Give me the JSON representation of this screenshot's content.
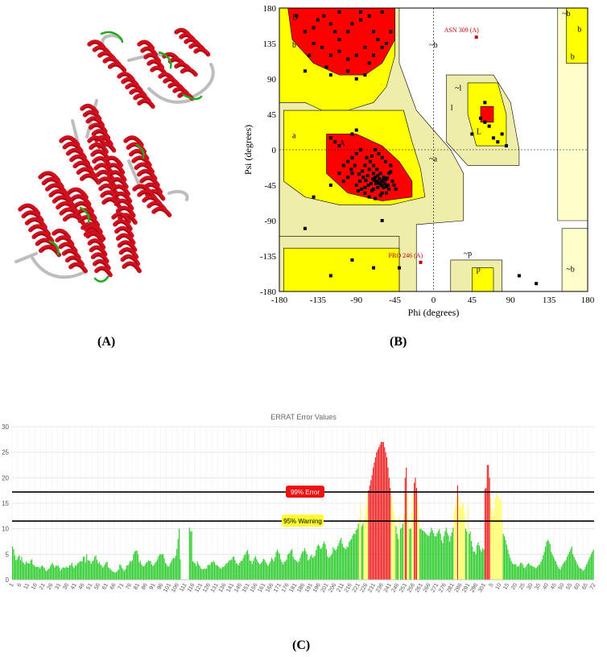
{
  "captions": {
    "a": "(A)",
    "b": "(B)",
    "c": "(C)"
  },
  "colors": {
    "helix": "#d0101e",
    "coil": "#bdbdbd",
    "turn": "#1faa1f",
    "most_favoured": "#ff0000",
    "additional": "#ffff00",
    "generous": "#eeeeaa",
    "disallowed": "#ffffff",
    "bar_ok": "#2ecc2e",
    "bar_warn": "#ffff66",
    "bar_err": "#ee2222"
  },
  "chart_data": [
    {
      "type": "scatter",
      "panel": "B",
      "xlabel": "Phi (degrees)",
      "ylabel": "Psi (degrees)",
      "xlim": [
        -180,
        180
      ],
      "ylim": [
        -180,
        180
      ],
      "x_ticks": [
        "-180",
        "-135",
        "-90",
        "-45",
        "0",
        "45",
        "90",
        "135",
        "180"
      ],
      "y_ticks": [
        "180",
        "135",
        "90",
        "45",
        "0",
        "-45",
        "-90",
        "-135",
        "-180"
      ],
      "region_labels": [
        "B",
        "b",
        "a",
        "A",
        "~a",
        "~b",
        "b",
        "~l",
        "l",
        "L",
        "~b",
        "b",
        "~p",
        "p",
        "~b"
      ],
      "annotations": [
        {
          "text": "ASN 309 (A)",
          "x": 50,
          "y": 143
        },
        {
          "text": "PRO 246 (A)",
          "x": -15,
          "y": -143
        }
      ],
      "points": [
        [
          -160,
          170
        ],
        [
          -150,
          150
        ],
        [
          -140,
          155
        ],
        [
          -135,
          165
        ],
        [
          -128,
          170
        ],
        [
          -120,
          160
        ],
        [
          -115,
          150
        ],
        [
          -110,
          140
        ],
        [
          -100,
          150
        ],
        [
          -95,
          160
        ],
        [
          -85,
          165
        ],
        [
          -75,
          170
        ],
        [
          -70,
          150
        ],
        [
          -65,
          140
        ],
        [
          -60,
          130
        ],
        [
          -80,
          130
        ],
        [
          -90,
          120
        ],
        [
          -100,
          115
        ],
        [
          -110,
          125
        ],
        [
          -120,
          120
        ],
        [
          -130,
          130
        ],
        [
          -140,
          135
        ],
        [
          -150,
          100
        ],
        [
          -120,
          95
        ],
        [
          -100,
          100
        ],
        [
          -90,
          90
        ],
        [
          -75,
          110
        ],
        [
          -70,
          120
        ],
        [
          -55,
          135
        ],
        [
          -50,
          150
        ],
        [
          -60,
          175
        ],
        [
          -85,
          175
        ],
        [
          -110,
          175
        ],
        [
          -145,
          120
        ],
        [
          -125,
          105
        ],
        [
          -80,
          95
        ],
        [
          -140,
          -60
        ],
        [
          -120,
          -45
        ],
        [
          -110,
          -30
        ],
        [
          -105,
          -20
        ],
        [
          -100,
          -15
        ],
        [
          -95,
          -10
        ],
        [
          -90,
          -5
        ],
        [
          -85,
          0
        ],
        [
          -80,
          -20
        ],
        [
          -75,
          -25
        ],
        [
          -70,
          -30
        ],
        [
          -68,
          -35
        ],
        [
          -66,
          -40
        ],
        [
          -64,
          -42
        ],
        [
          -62,
          -44
        ],
        [
          -60,
          -46
        ],
        [
          -58,
          -48
        ],
        [
          -56,
          -38
        ],
        [
          -54,
          -36
        ],
        [
          -52,
          -30
        ],
        [
          -50,
          -28
        ],
        [
          -48,
          -40
        ],
        [
          -46,
          -45
        ],
        [
          -44,
          -50
        ],
        [
          -65,
          -48
        ],
        [
          -70,
          -50
        ],
        [
          -72,
          -52
        ],
        [
          -60,
          -55
        ],
        [
          -58,
          -35
        ],
        [
          -62,
          -30
        ],
        [
          -66,
          -25
        ],
        [
          -70,
          -20
        ],
        [
          -74,
          -15
        ],
        [
          -78,
          -10
        ],
        [
          -82,
          -35
        ],
        [
          -86,
          -40
        ],
        [
          -90,
          -45
        ],
        [
          -95,
          -30
        ],
        [
          -100,
          -35
        ],
        [
          -105,
          -40
        ],
        [
          -110,
          5
        ],
        [
          -115,
          10
        ],
        [
          -120,
          15
        ],
        [
          -95,
          20
        ],
        [
          -90,
          25
        ],
        [
          -80,
          -55
        ],
        [
          -75,
          -60
        ],
        [
          -68,
          -62
        ],
        [
          -62,
          -58
        ],
        [
          -55,
          -55
        ],
        [
          -52,
          -50
        ],
        [
          -50,
          -20
        ],
        [
          -56,
          -15
        ],
        [
          -60,
          -10
        ],
        [
          -64,
          -5
        ],
        [
          -68,
          0
        ],
        [
          -72,
          -8
        ],
        [
          -76,
          -45
        ],
        [
          -80,
          -48
        ],
        [
          -84,
          -50
        ],
        [
          -88,
          -52
        ],
        [
          -92,
          -20
        ],
        [
          -96,
          -25
        ],
        [
          -63,
          -37
        ],
        [
          -61,
          -41
        ],
        [
          -67,
          -43
        ],
        [
          -69,
          -39
        ],
        [
          -57,
          -43
        ],
        [
          -59,
          -39
        ],
        [
          -53,
          -45
        ],
        [
          -55,
          -47
        ],
        [
          -65,
          -33
        ],
        [
          -71,
          -37
        ],
        [
          -73,
          -43
        ],
        [
          -77,
          -33
        ],
        [
          -79,
          -39
        ],
        [
          -83,
          -27
        ],
        [
          -87,
          -31
        ],
        [
          -150,
          -100
        ],
        [
          -60,
          -90
        ],
        [
          55,
          40
        ],
        [
          60,
          35
        ],
        [
          65,
          30
        ],
        [
          70,
          15
        ],
        [
          75,
          10
        ],
        [
          80,
          20
        ],
        [
          60,
          60
        ],
        [
          85,
          5
        ],
        [
          45,
          20
        ],
        [
          -95,
          -140
        ],
        [
          -70,
          -150
        ],
        [
          -40,
          -150
        ],
        [
          -120,
          -160
        ],
        [
          100,
          -160
        ],
        [
          120,
          -170
        ]
      ]
    },
    {
      "type": "bar",
      "panel": "C",
      "title": "ERRAT Error Values",
      "ylim": [
        0,
        30
      ],
      "y_ticks": [
        "0",
        "5",
        "10",
        "15",
        "20",
        "25",
        "30"
      ],
      "thresholds": [
        {
          "label": "99% Error",
          "value": 17.2
        },
        {
          "label": "95% Warning",
          "value": 11.5
        }
      ],
      "x_ticks": [
        "1",
        "6",
        "11",
        "16",
        "21",
        "26",
        "31",
        "36",
        "41",
        "46",
        "51",
        "56",
        "61",
        "66",
        "71",
        "76",
        "81",
        "86",
        "91",
        "96",
        "101",
        "106",
        "111",
        "116",
        "121",
        "126",
        "131",
        "136",
        "141",
        "146",
        "151",
        "156",
        "161",
        "166",
        "171",
        "176",
        "181",
        "186",
        "191",
        "196",
        "201",
        "206",
        "211",
        "216",
        "221",
        "226",
        "231",
        "236",
        "241",
        "246",
        "251",
        "256",
        "261",
        "266",
        "271",
        "276",
        "281",
        "286",
        "291",
        "296",
        "301",
        "5",
        "10",
        "15",
        "20",
        "25",
        "30",
        "35",
        "40",
        "45",
        "50",
        "55",
        "60",
        "65",
        "72"
      ],
      "values": [
        6.5,
        6.0,
        4.8,
        3.8,
        4.0,
        4.5,
        4.8,
        3.8,
        4.5,
        3.5,
        3.2,
        3.0,
        3.6,
        3.3,
        3.2,
        3.2,
        3.8,
        4.0,
        3.0,
        2.8,
        2.6,
        2.5,
        2.5,
        2.5,
        2.2,
        2.6,
        2.8,
        2.5,
        2.3,
        1.8,
        1.7,
        2.0,
        2.2,
        2.6,
        3.0,
        3.3,
        2.8,
        2.4,
        2.8,
        2.7,
        2.8,
        2.4,
        1.8,
        2.1,
        2.4,
        2.4,
        2.3,
        2.6,
        2.4,
        2.4,
        2.8,
        2.9,
        3.3,
        2.6,
        2.3,
        2.8,
        2.8,
        3.2,
        3.4,
        3.6,
        3.6,
        3.6,
        4.5,
        4.5,
        3.4,
        5.0,
        3.8,
        3.8,
        3.6,
        3.1,
        3.6,
        3.8,
        4.5,
        4.8,
        3.9,
        3.2,
        3.5,
        3.0,
        2.8,
        2.4,
        2.6,
        3.0,
        3.4,
        3.5,
        2.4,
        2.2,
        2.0,
        1.8,
        1.6,
        1.5,
        1.4,
        1.5,
        1.8,
        2.0,
        3.0,
        2.8,
        2.3,
        2.0,
        1.7,
        2.1,
        2.8,
        2.8,
        3.1,
        3.7,
        3.5,
        3.8,
        5.0,
        5.5,
        5.7,
        5.7,
        5.0,
        3.4,
        3.7,
        3.0,
        2.7,
        2.6,
        2.9,
        3.3,
        3.5,
        3.8,
        3.6,
        3.7,
        3.0,
        2.7,
        2.9,
        3.3,
        3.6,
        4.0,
        4.6,
        5.0,
        5.0,
        5.0,
        5.0,
        4.2,
        3.3,
        3.0,
        2.6,
        2.6,
        3.1,
        3.5,
        4.0,
        4.3,
        4.2,
        4.7,
        6.0,
        8.0,
        10.0,
        4.0,
        0,
        0,
        0,
        0,
        0,
        0,
        0,
        10.2,
        9.5,
        9.5,
        3.6,
        3.4,
        3.2,
        2.7,
        3.6,
        3.1,
        2.7,
        2.2,
        2.1,
        2.0,
        2.2,
        2.1,
        2.2,
        2.9,
        2.9,
        2.9,
        3.4,
        3.4,
        3.7,
        3.4,
        2.9,
        2.9,
        2.7,
        2.5,
        2.2,
        2.2,
        2.5,
        2.5,
        2.8,
        3.2,
        3.2,
        3.5,
        3.8,
        3.8,
        4.0,
        4.5,
        4.5,
        3.8,
        3.2,
        3.2,
        2.8,
        3.3,
        3.7,
        3.7,
        4.2,
        4.8,
        5.0,
        5.5,
        5.8,
        5.0,
        3.7,
        3.7,
        3.1,
        3.7,
        4.3,
        4.6,
        4.0,
        3.5,
        3.2,
        3.0,
        3.3,
        3.7,
        4.1,
        3.9,
        3.4,
        3.0,
        2.7,
        3.2,
        3.6,
        4.3,
        4.0,
        3.6,
        4.4,
        5.4,
        5.9,
        5.4,
        5.1,
        4.0,
        3.5,
        3.0,
        3.5,
        3.6,
        3.9,
        4.9,
        5.1,
        5.3,
        5.7,
        6.0,
        4.5,
        4.0,
        3.9,
        3.6,
        3.4,
        3.6,
        4.3,
        5.0,
        5.5,
        5.6,
        6.2,
        5.6,
        5.0,
        3.8,
        4.0,
        4.6,
        4.9,
        4.3,
        4.5,
        4.7,
        5.8,
        6.6,
        6.9,
        6.6,
        6.0,
        6.3,
        7.0,
        7.5,
        7.0,
        6.0,
        4.6,
        4.3,
        4.5,
        4.8,
        5.1,
        6.4,
        6.0,
        5.7,
        6.0,
        6.6,
        7.2,
        7.8,
        8.2,
        7.1,
        6.4,
        6.2,
        6.0,
        6.5,
        6.4,
        7.4,
        7.8,
        8.0,
        8.7,
        9.0,
        9.0,
        9.7,
        10.0,
        11.0,
        12.0,
        14.8,
        10.5,
        11.0,
        11.5,
        12.5,
        14.5,
        17.0,
        17.5,
        18.5,
        19.5,
        20.5,
        22.0,
        23.0,
        24.0,
        25.0,
        25.5,
        26.0,
        26.5,
        27.0,
        27.0,
        27.0,
        26.0,
        25.0,
        24.0,
        22.0,
        20.0,
        18.0,
        16.5,
        15.0,
        13.5,
        12.0,
        10.5,
        9.0,
        8.0,
        12.5,
        10.0,
        10.2,
        11.0,
        13.0,
        20.0,
        22.0,
        17.0,
        12.0,
        10.0,
        10.0,
        13.0,
        17.0,
        19.0,
        20.0,
        18.0,
        15.0,
        12.0,
        10.0,
        10.0,
        9.7,
        9.6,
        9.4,
        9.1,
        8.9,
        8.6,
        8.7,
        9.3,
        10.2,
        9.7,
        9.1,
        8.5,
        8.5,
        9.1,
        9.5,
        9.9,
        9.0,
        7.7,
        7.2,
        8.5,
        9.5,
        10.2,
        9.2,
        8.7,
        7.5,
        8.6,
        9.3,
        10.2,
        13.5,
        14.5,
        16.0,
        18.5,
        16.5,
        14.5,
        14.0,
        15.0,
        15.0,
        13.0,
        10.0,
        9.5,
        14.8,
        9.0,
        9.5,
        7.6,
        6.5,
        5.5,
        5.5,
        5.0,
        6.8,
        7.3,
        6.7,
        5.9,
        5.5,
        6.2,
        5.9,
        17.8,
        18.0,
        22.5,
        22.5,
        20.0,
        16.0,
        14.0,
        12.5,
        14.0,
        16.0,
        17.0,
        16.5,
        16.0,
        15.5,
        16.0,
        12.0,
        9.0,
        8.5,
        7.8,
        6.9,
        5.9,
        5.0,
        4.3,
        3.7,
        3.2,
        3.0,
        3.0,
        3.1,
        2.6,
        2.6,
        2.8,
        3.3,
        3.3,
        3.0,
        2.4,
        2.3,
        2.6,
        3.0,
        3.3,
        3.0,
        2.8,
        2.7,
        2.6,
        2.5,
        2.3,
        2.3,
        2.6,
        2.9,
        3.0,
        3.5,
        4.0,
        4.8,
        5.5,
        6.5,
        7.5,
        7.8,
        7.5,
        7.0,
        5.5,
        5.0,
        4.5,
        4.0,
        3.6,
        3.0,
        2.5,
        2.2,
        2.0,
        2.5,
        3.0,
        3.4,
        3.6,
        3.9,
        4.5,
        5.0,
        5.5,
        6.0,
        6.5,
        5.0,
        4.5,
        4.0,
        3.5,
        3.0,
        2.6,
        2.3,
        2.2,
        2.0,
        1.7,
        2.0,
        2.5,
        3.0,
        3.5,
        4.0,
        4.5,
        5.0,
        5.5,
        5.9
      ]
    }
  ]
}
